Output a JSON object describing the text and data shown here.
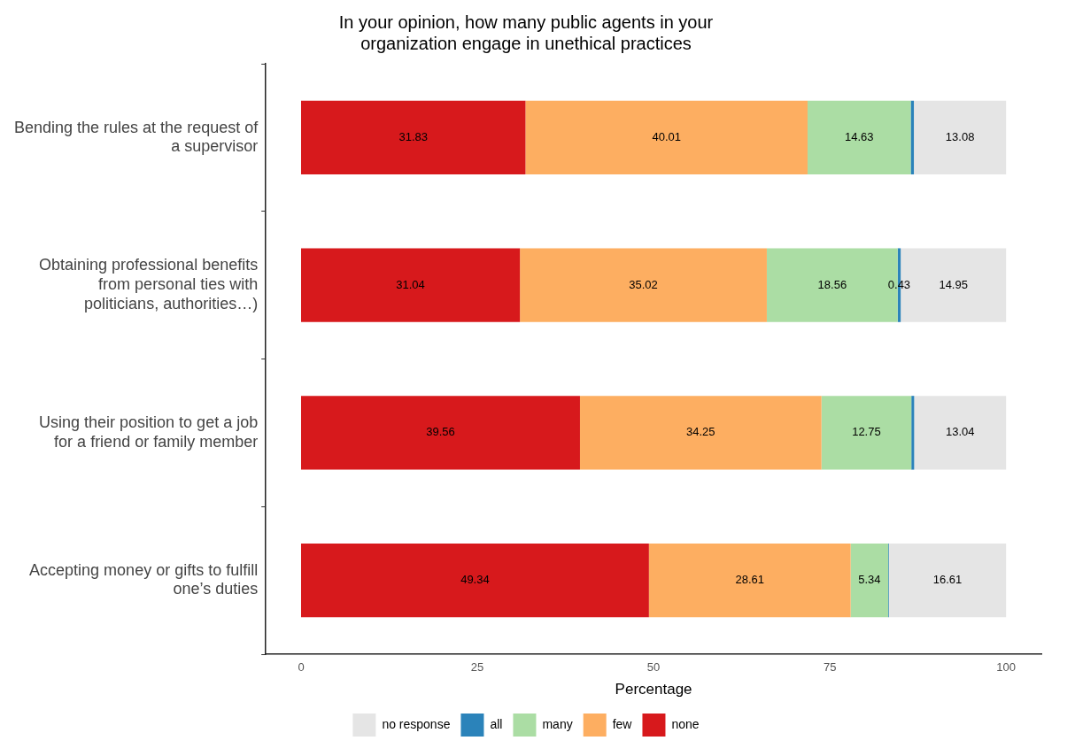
{
  "chart_data": {
    "type": "bar",
    "orientation": "horizontal",
    "stacked": true,
    "title": "In your opinion, how many public agents in your\norganization engage in unethical practices",
    "xlabel": "Percentage",
    "categories": [
      "Bending the rules at the request of\na supervisor",
      "Obtaining professional benefits\nfrom personal ties with\npoliticians, authorities…)",
      "Using their position to get a job\nfor a friend or family member",
      "Accepting money or gifts to fulfill\none’s duties"
    ],
    "series": [
      {
        "name": "none",
        "color": "#d7191c",
        "values": [
          31.83,
          31.04,
          39.56,
          49.34
        ],
        "value_labels": [
          "31.83",
          "31.04",
          "39.56",
          "49.34"
        ]
      },
      {
        "name": "few",
        "color": "#fdae61",
        "values": [
          40.01,
          35.02,
          34.25,
          28.61
        ],
        "value_labels": [
          "40.01",
          "35.02",
          "34.25",
          "28.61"
        ]
      },
      {
        "name": "many",
        "color": "#abdda4",
        "values": [
          14.63,
          18.56,
          12.75,
          5.34
        ],
        "value_labels": [
          "14.63",
          "18.56",
          "12.75",
          "5.34"
        ]
      },
      {
        "name": "all",
        "color": "#2b83ba",
        "values": [
          0.45,
          0.43,
          0.4,
          0.1
        ],
        "value_labels": [
          null,
          "0.43",
          null,
          null
        ]
      },
      {
        "name": "no response",
        "color": "#e5e5e5",
        "values": [
          13.08,
          14.95,
          13.04,
          16.61
        ],
        "value_labels": [
          "13.08",
          "14.95",
          "13.04",
          "16.61"
        ]
      }
    ],
    "xlim": [
      -5,
      105
    ],
    "xticks": [
      0,
      25,
      50,
      75,
      100
    ],
    "grid": false,
    "legend": "bottom"
  }
}
